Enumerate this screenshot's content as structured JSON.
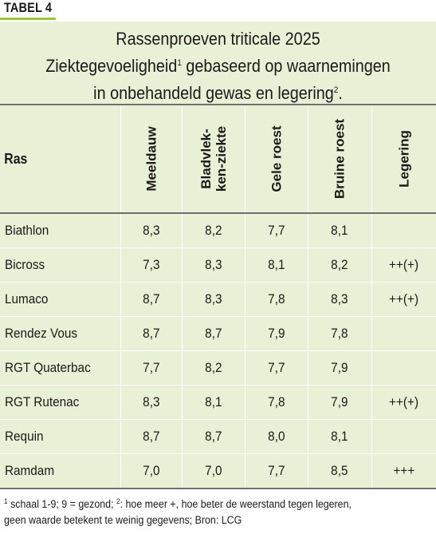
{
  "label": "TABEL 4",
  "title": {
    "line1": "Rassenproeven triticale 2025",
    "line2a": "Ziektegevoeligheid",
    "line2_sup": "1",
    "line2b": " gebaseerd op waarnemingen",
    "line3a": "in onbehandeld gewas en legering",
    "line3_sup": "2",
    "line3b": "."
  },
  "colors": {
    "accent": "#9bc43b",
    "panel": "#e8f0d5",
    "rule": "#6f6f6f"
  },
  "headers": {
    "ras": "Ras",
    "meeldauw": "Meeldauw",
    "bladvlek_1": "Bladvlek-",
    "bladvlek_2": "ken-ziekte",
    "gele_roest": "Gele roest",
    "bruine_roest": "Bruine roest",
    "legering": "Legering"
  },
  "rows": [
    {
      "ras": "Biathlon",
      "meeldauw": "8,3",
      "bladvlek": "8,2",
      "gele": "7,7",
      "bruine": "8,1",
      "legering": ""
    },
    {
      "ras": "Bicross",
      "meeldauw": "7,3",
      "bladvlek": "8,3",
      "gele": "8,1",
      "bruine": "8,2",
      "legering": "++(+)"
    },
    {
      "ras": "Lumaco",
      "meeldauw": "8,7",
      "bladvlek": "8,3",
      "gele": "7,8",
      "bruine": "8,3",
      "legering": "++(+)"
    },
    {
      "ras": "Rendez Vous",
      "meeldauw": "8,7",
      "bladvlek": "8,7",
      "gele": "7,9",
      "bruine": "7,8",
      "legering": ""
    },
    {
      "ras": "RGT Quaterbac",
      "meeldauw": "7,7",
      "bladvlek": "8,2",
      "gele": "7,7",
      "bruine": "7,9",
      "legering": ""
    },
    {
      "ras": "RGT Rutenac",
      "meeldauw": "8,3",
      "bladvlek": "8,1",
      "gele": "7,8",
      "bruine": "7,9",
      "legering": "++(+)"
    },
    {
      "ras": "Requin",
      "meeldauw": "8,7",
      "bladvlek": "8,7",
      "gele": "8,0",
      "bruine": "8,1",
      "legering": ""
    },
    {
      "ras": "Ramdam",
      "meeldauw": "7,0",
      "bladvlek": "7,0",
      "gele": "7,7",
      "bruine": "8,5",
      "legering": "+++"
    }
  ],
  "footnote": {
    "sup1": "1",
    "part1": " schaal 1-9; 9 = gezond;  ",
    "sup2": "2",
    "part2": ": hoe meer +, hoe beter de weerstand tegen legeren,",
    "line2": "geen waarde betekent te weinig gegevens; Bron: LCG"
  }
}
